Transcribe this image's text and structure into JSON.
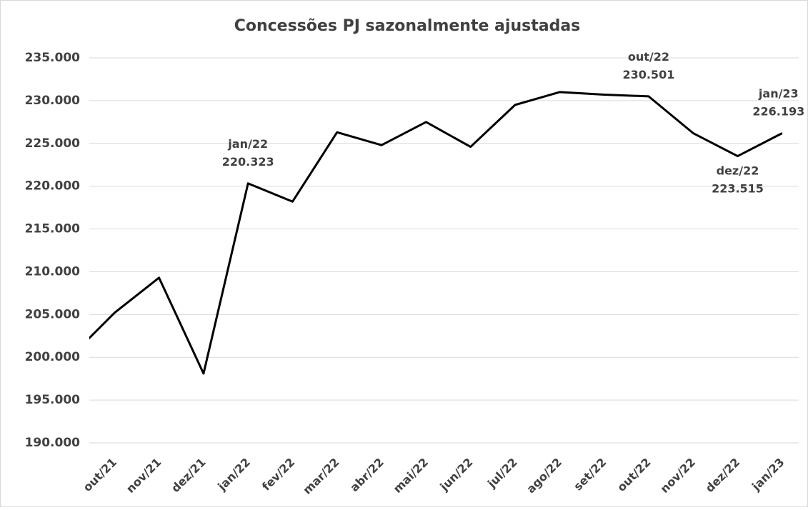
{
  "chart_data": {
    "type": "line",
    "title": "Concessões PJ sazonalmente ajustadas",
    "categories": [
      null,
      "out/21",
      "nov/21",
      "dez/21",
      "jan/22",
      "fev/22",
      "mar/22",
      "abr/22",
      "mai/22",
      "jun/22",
      "jul/22",
      "ago/22",
      "set/22",
      "out/22",
      "nov/22",
      "dez/22",
      "jan/23"
    ],
    "series": [
      {
        "name": "Concessões PJ",
        "color": "#000000",
        "values": [
          200000,
          205200,
          209300,
          198100,
          220323,
          218200,
          226300,
          224800,
          227500,
          224600,
          229500,
          231000,
          230700,
          230501,
          226200,
          223515,
          226193
        ],
        "value_labels": [
          null,
          null,
          null,
          null,
          "220.323",
          null,
          null,
          null,
          null,
          null,
          null,
          null,
          null,
          "230.501",
          null,
          "223.515",
          "226.193"
        ]
      }
    ],
    "ylim": [
      190000,
      235000
    ],
    "yticks": [
      {
        "value": 190000,
        "label": "190.000"
      },
      {
        "value": 195000,
        "label": "195.000"
      },
      {
        "value": 200000,
        "label": "200.000"
      },
      {
        "value": 205000,
        "label": "205.000"
      },
      {
        "value": 210000,
        "label": "210.000"
      },
      {
        "value": 215000,
        "label": "215.000"
      },
      {
        "value": 220000,
        "label": "220.000"
      },
      {
        "value": 225000,
        "label": "225.000"
      },
      {
        "value": 230000,
        "label": "230.000"
      },
      {
        "value": 235000,
        "label": "235.000"
      }
    ],
    "grid": true
  }
}
